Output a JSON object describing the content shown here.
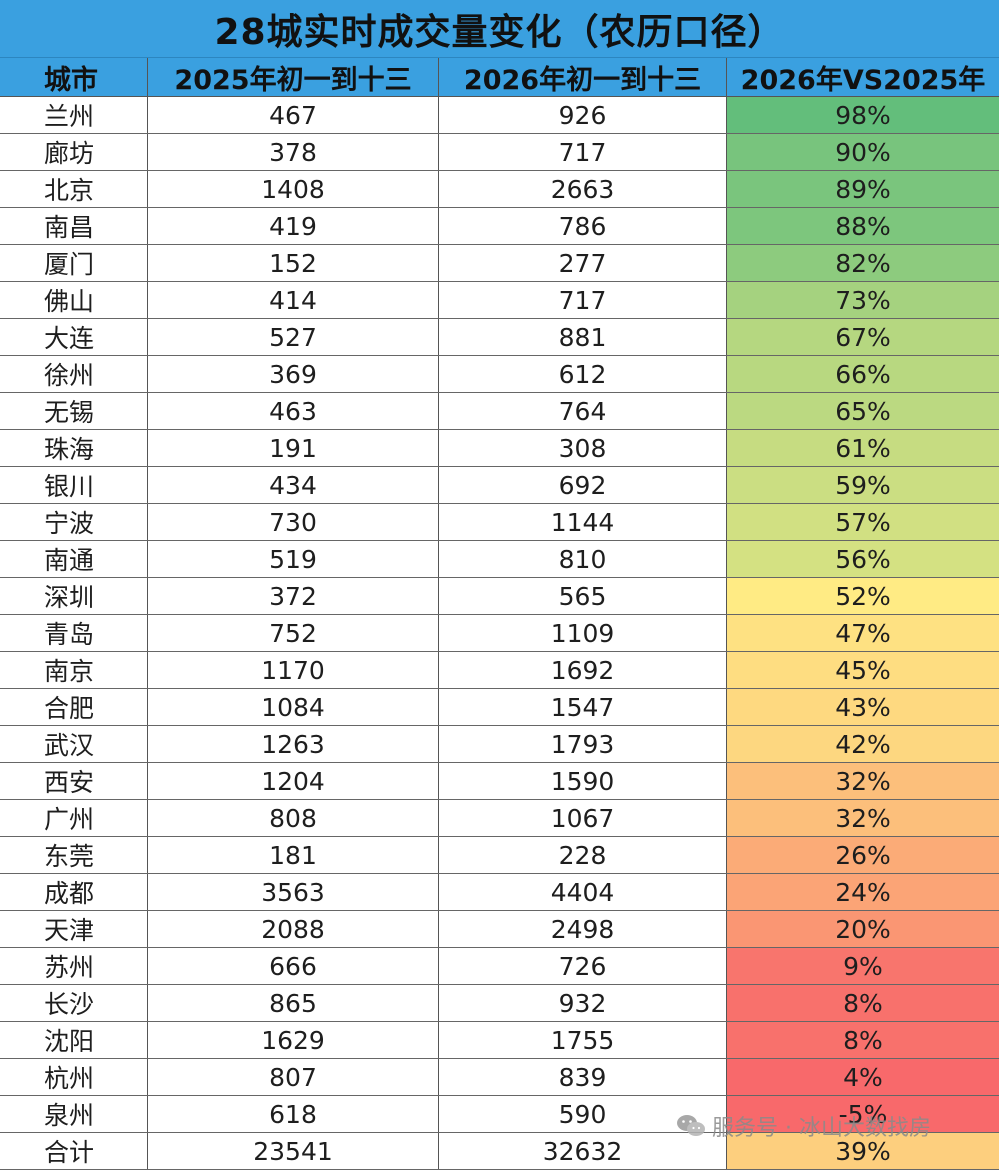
{
  "title": "28城实时成交量变化（农历口径）",
  "headers": [
    "城市",
    "2025年初一到十三",
    "2026年初一到十三",
    "2026年VS2025年"
  ],
  "rows": [
    {
      "city": "兰州",
      "y2025": "467",
      "y2026": "926",
      "change": "98%",
      "color": "#63be7b"
    },
    {
      "city": "廊坊",
      "y2025": "378",
      "y2026": "717",
      "change": "90%",
      "color": "#78c47d"
    },
    {
      "city": "北京",
      "y2025": "1408",
      "y2026": "2663",
      "change": "89%",
      "color": "#7ac57d"
    },
    {
      "city": "南昌",
      "y2025": "419",
      "y2026": "786",
      "change": "88%",
      "color": "#7dc67d"
    },
    {
      "city": "厦门",
      "y2025": "152",
      "y2026": "277",
      "change": "82%",
      "color": "#8dcb7e"
    },
    {
      "city": "佛山",
      "y2025": "414",
      "y2026": "717",
      "change": "73%",
      "color": "#a5d27f"
    },
    {
      "city": "大连",
      "y2025": "527",
      "y2026": "881",
      "change": "67%",
      "color": "#b5d780"
    },
    {
      "city": "徐州",
      "y2025": "369",
      "y2026": "612",
      "change": "66%",
      "color": "#b8d880"
    },
    {
      "city": "无锡",
      "y2025": "463",
      "y2026": "764",
      "change": "65%",
      "color": "#bbd981"
    },
    {
      "city": "珠海",
      "y2025": "191",
      "y2026": "308",
      "change": "61%",
      "color": "#c6dc81"
    },
    {
      "city": "银川",
      "y2025": "434",
      "y2026": "692",
      "change": "59%",
      "color": "#cbde82"
    },
    {
      "city": "宁波",
      "y2025": "730",
      "y2026": "1144",
      "change": "57%",
      "color": "#d1e082"
    },
    {
      "city": "南通",
      "y2025": "519",
      "y2026": "810",
      "change": "56%",
      "color": "#d4e182"
    },
    {
      "city": "深圳",
      "y2025": "372",
      "y2026": "565",
      "change": "52%",
      "color": "#ffeb84"
    },
    {
      "city": "青岛",
      "y2025": "752",
      "y2026": "1109",
      "change": "47%",
      "color": "#fee182"
    },
    {
      "city": "南京",
      "y2025": "1170",
      "y2026": "1692",
      "change": "45%",
      "color": "#fedd81"
    },
    {
      "city": "合肥",
      "y2025": "1084",
      "y2026": "1547",
      "change": "43%",
      "color": "#fed980"
    },
    {
      "city": "武汉",
      "y2025": "1263",
      "y2026": "1793",
      "change": "42%",
      "color": "#fdd780"
    },
    {
      "city": "西安",
      "y2025": "1204",
      "y2026": "1590",
      "change": "32%",
      "color": "#fcbf7b"
    },
    {
      "city": "广州",
      "y2025": "808",
      "y2026": "1067",
      "change": "32%",
      "color": "#fcbf7b"
    },
    {
      "city": "东莞",
      "y2025": "181",
      "y2026": "228",
      "change": "26%",
      "color": "#fbab77"
    },
    {
      "city": "成都",
      "y2025": "3563",
      "y2026": "4404",
      "change": "24%",
      "color": "#fba476"
    },
    {
      "city": "天津",
      "y2025": "2088",
      "y2026": "2498",
      "change": "20%",
      "color": "#fa9673"
    },
    {
      "city": "苏州",
      "y2025": "666",
      "y2026": "726",
      "change": "9%",
      "color": "#f8756d"
    },
    {
      "city": "长沙",
      "y2025": "865",
      "y2026": "932",
      "change": "8%",
      "color": "#f8716c"
    },
    {
      "city": "沈阳",
      "y2025": "1629",
      "y2026": "1755",
      "change": "8%",
      "color": "#f8716c"
    },
    {
      "city": "杭州",
      "y2025": "807",
      "y2026": "839",
      "change": "4%",
      "color": "#f8696b"
    },
    {
      "city": "泉州",
      "y2025": "618",
      "y2026": "590",
      "change": "-5%",
      "color": "#f8696b"
    },
    {
      "city": "合计",
      "y2025": "23541",
      "y2026": "32632",
      "change": "39%",
      "color": "#fdcf7e"
    }
  ],
  "watermark": "服务号 · 冰山大数找房",
  "colors": {
    "header_bg": "#3aa0e0",
    "grid": "#555555"
  }
}
